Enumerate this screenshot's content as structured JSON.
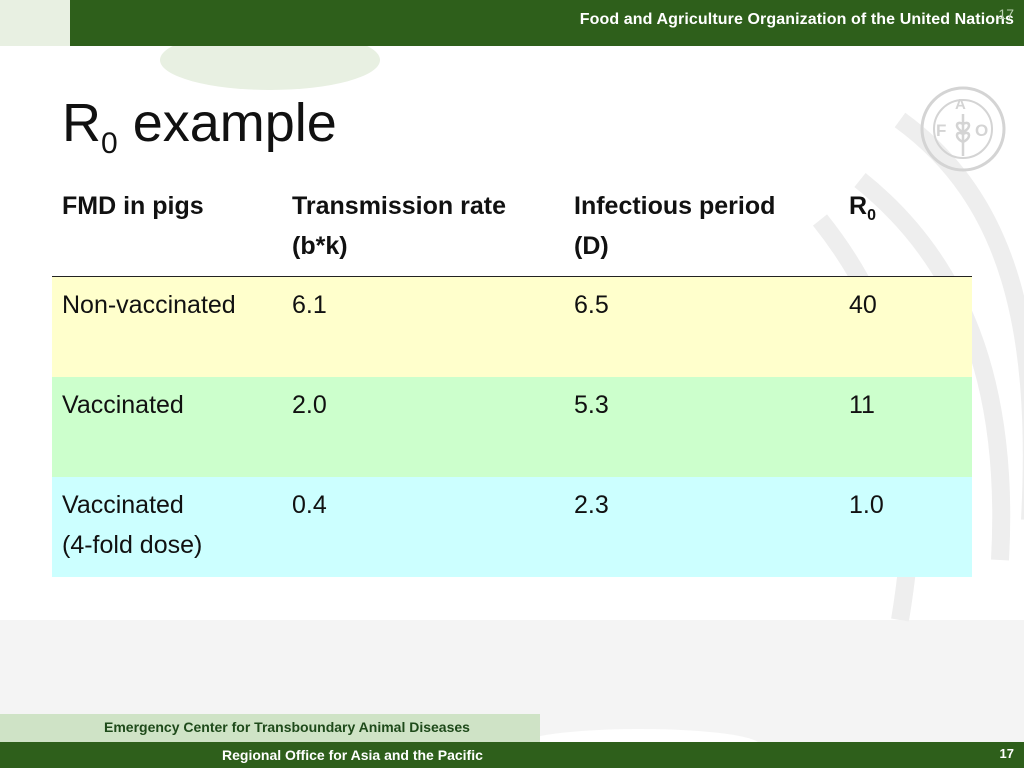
{
  "header": {
    "organization": "Food and Agriculture Organization of the United Nations",
    "page_number": "17"
  },
  "slide": {
    "title_main": "R",
    "title_sub": "0",
    "title_rest": " example"
  },
  "table": {
    "headers": [
      {
        "line1": "FMD in pigs",
        "line2": ""
      },
      {
        "line1": "Transmission rate",
        "line2": "(b*k)"
      },
      {
        "line1": "Infectious period",
        "line2": "(D)"
      },
      {
        "main": "R",
        "sub": "0"
      }
    ],
    "rows": [
      {
        "cells": [
          "Non-vaccinated",
          "6.1",
          "6.5",
          "40"
        ],
        "line2": "",
        "color": "#ffffcc"
      },
      {
        "cells": [
          "Vaccinated",
          "2.0",
          "5.3",
          "11"
        ],
        "line2": "",
        "color": "#ccffcc"
      },
      {
        "cells": [
          "Vaccinated",
          "0.4",
          "2.3",
          "1.0"
        ],
        "line2": "(4-fold dose)",
        "color": "#ccffff"
      }
    ]
  },
  "footer": {
    "line1": "Emergency Center for Transboundary Animal Diseases",
    "line2": "Regional Office for Asia and the Pacific",
    "page_number": "17"
  },
  "colors": {
    "band_green": "#2e5f1b",
    "light_green": "#cfe3c6"
  },
  "icons": {
    "logo": "fao-logo-icon"
  }
}
